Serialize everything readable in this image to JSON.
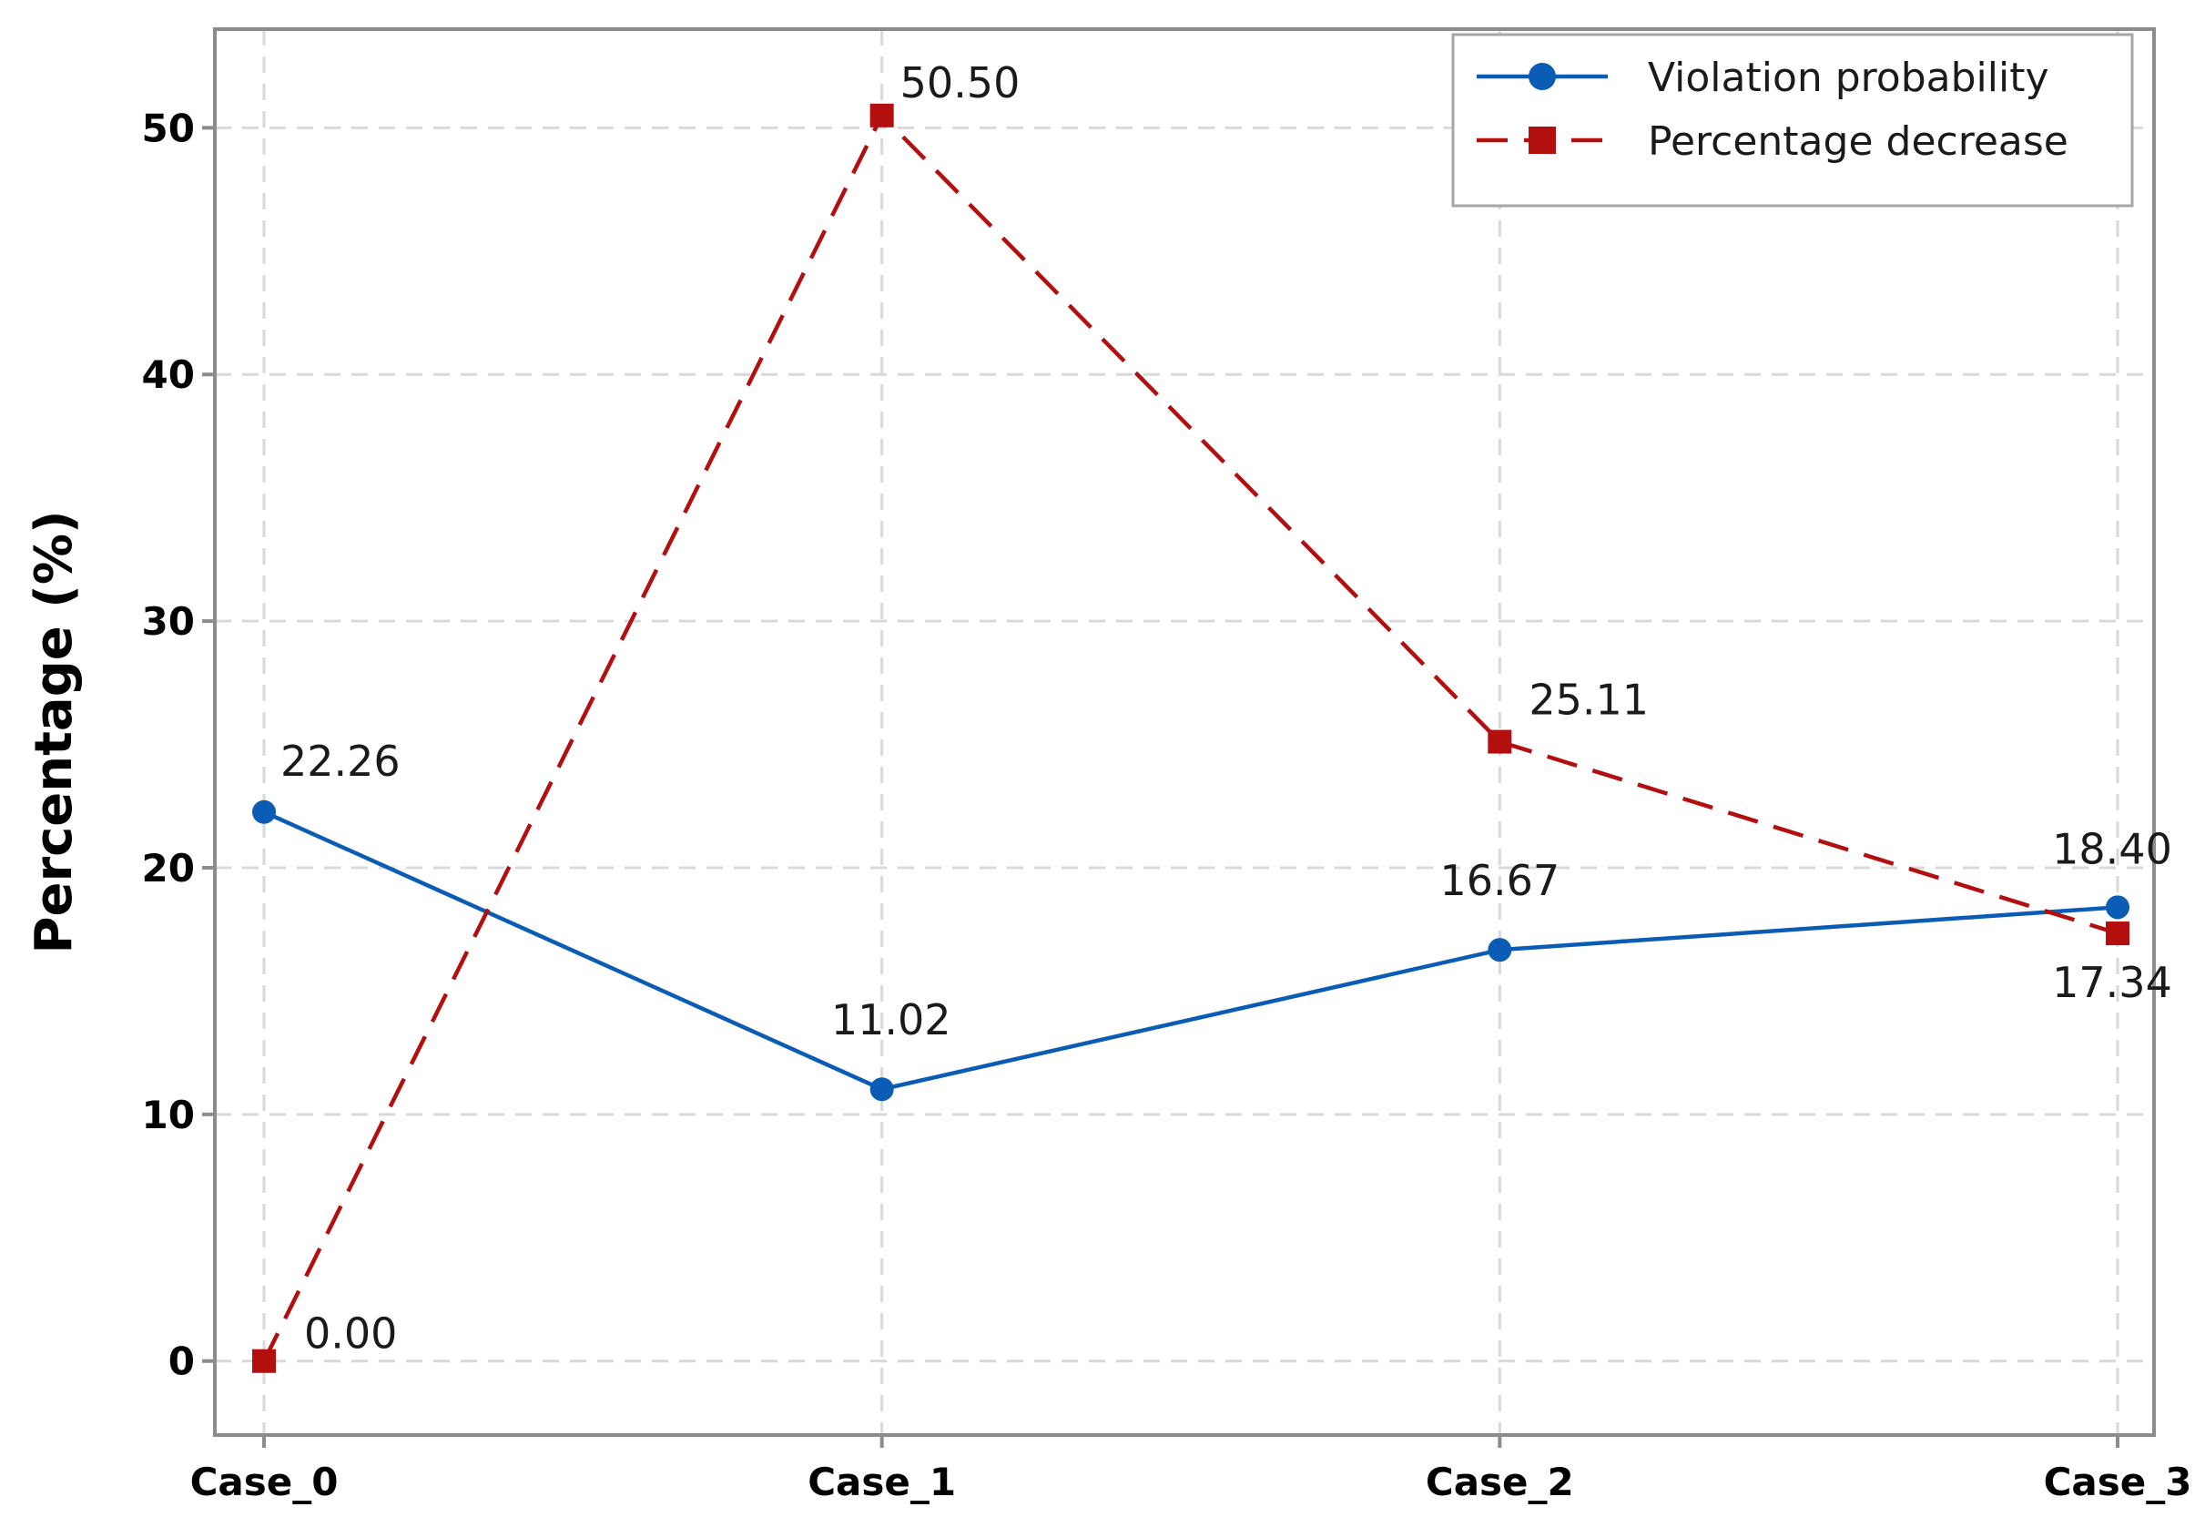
{
  "chart_data": {
    "type": "line",
    "title": "",
    "xlabel": "",
    "ylabel": "Percentage (%)",
    "categories": [
      "Case_0",
      "Case_1",
      "Case_2",
      "Case_3"
    ],
    "ylim": [
      -3,
      54
    ],
    "yticks": [
      0,
      10,
      20,
      30,
      40,
      50
    ],
    "grid": true,
    "legend_position": "top-right",
    "series": [
      {
        "name": "Violation probability",
        "values": [
          22.26,
          11.02,
          16.67,
          18.4
        ],
        "labels": [
          "22.26",
          "11.02",
          "16.67",
          "18.40"
        ],
        "color": "#0b5cb5",
        "line_style": "solid",
        "marker": "circle"
      },
      {
        "name": "Percentage decrease",
        "values": [
          0.0,
          50.5,
          25.11,
          17.34
        ],
        "labels": [
          "0.00",
          "50.50",
          "25.11",
          "17.34"
        ],
        "color": "#b30f0f",
        "line_style": "dashed",
        "marker": "square"
      }
    ]
  }
}
